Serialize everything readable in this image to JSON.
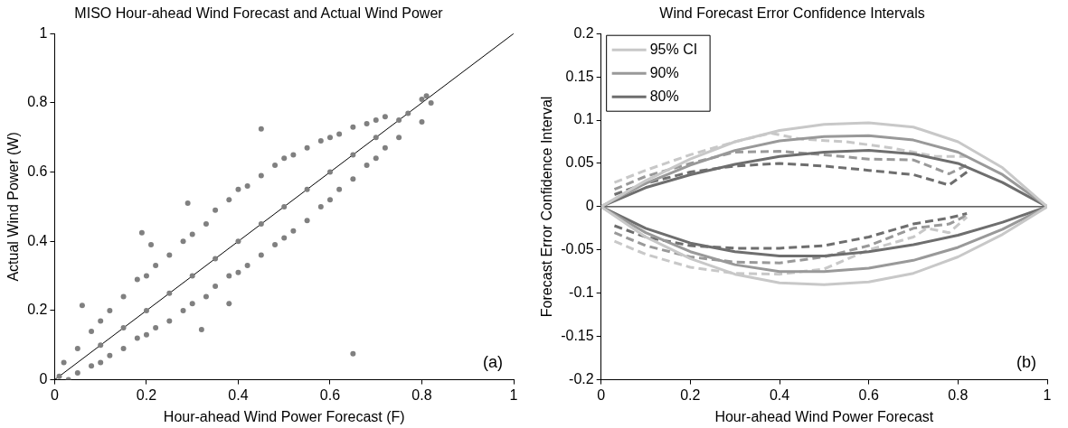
{
  "chart_data": [
    {
      "type": "scatter",
      "title": "MISO Hour-ahead Wind Forecast and Actual Wind Power",
      "xlabel": "Hour-ahead Wind Power Forecast (F)",
      "ylabel": "Actual Wind Power (W)",
      "xlim": [
        0,
        1
      ],
      "ylim": [
        0,
        1
      ],
      "xticks": [
        0,
        0.2,
        0.4,
        0.6,
        0.8,
        1
      ],
      "yticks": [
        0,
        0.2,
        0.4,
        0.6,
        0.8,
        1
      ],
      "grid": false,
      "legend": false,
      "annotations": [
        "(a)"
      ],
      "series": [
        {
          "type": "scatter",
          "color": "#808080",
          "marker": "circle",
          "x": [
            0.45,
            0.29,
            0.19,
            0.65,
            0.06,
            0.8,
            0.32,
            0.21,
            0.38,
            0.01,
            0.02,
            0.03,
            0.05,
            0.05,
            0.08,
            0.08,
            0.1,
            0.1,
            0.1,
            0.12,
            0.12,
            0.15,
            0.15,
            0.15,
            0.18,
            0.18,
            0.2,
            0.2,
            0.2,
            0.22,
            0.22,
            0.25,
            0.25,
            0.25,
            0.28,
            0.28,
            0.3,
            0.3,
            0.3,
            0.33,
            0.33,
            0.35,
            0.35,
            0.35,
            0.38,
            0.38,
            0.4,
            0.4,
            0.4,
            0.42,
            0.42,
            0.45,
            0.45,
            0.45,
            0.48,
            0.48,
            0.5,
            0.5,
            0.5,
            0.52,
            0.52,
            0.55,
            0.55,
            0.55,
            0.58,
            0.58,
            0.6,
            0.6,
            0.6,
            0.62,
            0.62,
            0.65,
            0.65,
            0.65,
            0.68,
            0.68,
            0.7,
            0.7,
            0.7,
            0.72,
            0.72,
            0.75,
            0.75,
            0.77,
            0.8,
            0.81,
            0.82
          ],
          "values": [
            0.725,
            0.51,
            0.425,
            0.075,
            0.215,
            0.745,
            0.145,
            0.39,
            0.22,
            0.01,
            0.05,
            0.0,
            0.09,
            0.02,
            0.14,
            0.04,
            0.17,
            0.1,
            0.05,
            0.2,
            0.07,
            0.24,
            0.15,
            0.09,
            0.29,
            0.12,
            0.3,
            0.2,
            0.13,
            0.33,
            0.15,
            0.36,
            0.25,
            0.17,
            0.4,
            0.2,
            0.42,
            0.3,
            0.22,
            0.45,
            0.24,
            0.49,
            0.35,
            0.27,
            0.52,
            0.3,
            0.55,
            0.4,
            0.31,
            0.56,
            0.33,
            0.59,
            0.45,
            0.36,
            0.62,
            0.39,
            0.64,
            0.5,
            0.41,
            0.65,
            0.43,
            0.67,
            0.55,
            0.46,
            0.69,
            0.5,
            0.7,
            0.6,
            0.52,
            0.71,
            0.55,
            0.73,
            0.65,
            0.58,
            0.74,
            0.62,
            0.75,
            0.7,
            0.64,
            0.76,
            0.67,
            0.75,
            0.7,
            0.77,
            0.81,
            0.82,
            0.8
          ]
        },
        {
          "type": "line",
          "color": "#000000",
          "x": [
            0,
            1
          ],
          "values": [
            0,
            1
          ],
          "line_style": "solid"
        }
      ]
    },
    {
      "type": "line",
      "title": "Wind Forecast Error Confidence Intervals",
      "xlabel": "Hour-ahead Wind Power Forecast",
      "ylabel": "Forecast Error Confidence Interval",
      "xlim": [
        0,
        1
      ],
      "ylim": [
        -0.2,
        0.2
      ],
      "xticks": [
        0,
        0.2,
        0.4,
        0.6,
        0.8,
        1
      ],
      "yticks": [
        -0.2,
        -0.15,
        -0.1,
        -0.05,
        0,
        0.05,
        0.1,
        0.15,
        0.2
      ],
      "grid": false,
      "legend": "top left",
      "marker": "none",
      "annotations": [
        "(b)"
      ],
      "ref_lines": [
        {
          "axis": "y",
          "value": 0,
          "color": "#000000"
        }
      ],
      "series": [
        {
          "name": "95% CI",
          "color": "#c8c8c8",
          "line_style": "solid",
          "x": [
            0,
            0.1,
            0.2,
            0.3,
            0.4,
            0.5,
            0.6,
            0.7,
            0.8,
            0.9,
            1,
            null,
            0,
            0.1,
            0.2,
            0.3,
            0.4,
            0.5,
            0.6,
            0.7,
            0.8,
            0.9,
            1
          ],
          "values": [
            0,
            0.03,
            0.055,
            0.075,
            0.088,
            0.095,
            0.097,
            0.092,
            0.075,
            0.045,
            0,
            null,
            0,
            -0.035,
            -0.06,
            -0.078,
            -0.088,
            -0.09,
            -0.087,
            -0.077,
            -0.058,
            -0.032,
            0
          ]
        },
        {
          "name": "90%",
          "color": "#999999",
          "line_style": "solid",
          "x": [
            0,
            0.1,
            0.2,
            0.3,
            0.4,
            0.5,
            0.6,
            0.7,
            0.8,
            0.9,
            1,
            null,
            0,
            0.1,
            0.2,
            0.3,
            0.4,
            0.5,
            0.6,
            0.7,
            0.8,
            0.9,
            1
          ],
          "values": [
            0,
            0.027,
            0.048,
            0.065,
            0.076,
            0.081,
            0.082,
            0.077,
            0.063,
            0.037,
            0,
            null,
            0,
            -0.03,
            -0.052,
            -0.067,
            -0.075,
            -0.075,
            -0.071,
            -0.062,
            -0.047,
            -0.026,
            0
          ]
        },
        {
          "name": "80%",
          "color": "#6e6e6e",
          "line_style": "solid",
          "x": [
            0,
            0.1,
            0.2,
            0.3,
            0.4,
            0.5,
            0.6,
            0.7,
            0.8,
            0.9,
            1,
            null,
            0,
            0.1,
            0.2,
            0.3,
            0.4,
            0.5,
            0.6,
            0.7,
            0.8,
            0.9,
            1
          ],
          "values": [
            0,
            0.022,
            0.037,
            0.049,
            0.058,
            0.063,
            0.065,
            0.061,
            0.05,
            0.028,
            0,
            null,
            0,
            -0.025,
            -0.042,
            -0.052,
            -0.057,
            -0.057,
            -0.052,
            -0.044,
            -0.033,
            -0.018,
            0
          ]
        },
        {
          "color": "#c8c8c8",
          "line_style": "dashed",
          "x": [
            0.03,
            0.1,
            0.2,
            0.3,
            0.38,
            0.45,
            0.55,
            0.65,
            0.75,
            0.82
          ],
          "values": [
            0.028,
            0.042,
            0.06,
            0.075,
            0.085,
            0.078,
            0.075,
            0.068,
            0.058,
            0.058
          ]
        },
        {
          "color": "#999999",
          "line_style": "dashed",
          "x": [
            0.03,
            0.1,
            0.2,
            0.3,
            0.4,
            0.5,
            0.6,
            0.7,
            0.78,
            0.82
          ],
          "values": [
            0.02,
            0.035,
            0.05,
            0.063,
            0.064,
            0.06,
            0.055,
            0.054,
            0.038,
            0.048
          ]
        },
        {
          "color": "#6e6e6e",
          "line_style": "dashed",
          "x": [
            0.03,
            0.1,
            0.2,
            0.3,
            0.4,
            0.5,
            0.6,
            0.7,
            0.78,
            0.82
          ],
          "values": [
            0.014,
            0.027,
            0.04,
            0.047,
            0.05,
            0.047,
            0.042,
            0.037,
            0.025,
            0.04
          ]
        },
        {
          "color": "#c8c8c8",
          "line_style": "dashed",
          "x": [
            0.03,
            0.1,
            0.2,
            0.3,
            0.4,
            0.5,
            0.6,
            0.7,
            0.73,
            0.78,
            0.82
          ],
          "values": [
            -0.04,
            -0.055,
            -0.07,
            -0.077,
            -0.078,
            -0.072,
            -0.05,
            -0.035,
            -0.025,
            -0.03,
            -0.012
          ]
        },
        {
          "color": "#999999",
          "line_style": "dashed",
          "x": [
            0.03,
            0.1,
            0.2,
            0.3,
            0.4,
            0.5,
            0.6,
            0.7,
            0.78,
            0.82
          ],
          "values": [
            -0.03,
            -0.045,
            -0.058,
            -0.064,
            -0.065,
            -0.058,
            -0.045,
            -0.025,
            -0.02,
            -0.01
          ]
        },
        {
          "color": "#6e6e6e",
          "line_style": "dashed",
          "x": [
            0.03,
            0.1,
            0.2,
            0.3,
            0.4,
            0.5,
            0.6,
            0.7,
            0.78,
            0.82
          ],
          "values": [
            -0.022,
            -0.035,
            -0.045,
            -0.048,
            -0.048,
            -0.045,
            -0.035,
            -0.02,
            -0.013,
            -0.008
          ]
        }
      ]
    }
  ]
}
